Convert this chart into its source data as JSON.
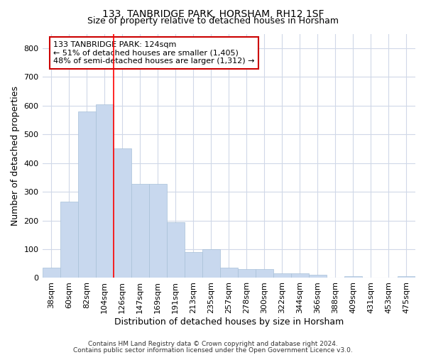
{
  "title1": "133, TANBRIDGE PARK, HORSHAM, RH12 1SF",
  "title2": "Size of property relative to detached houses in Horsham",
  "xlabel": "Distribution of detached houses by size in Horsham",
  "ylabel": "Number of detached properties",
  "categories": [
    "38sqm",
    "60sqm",
    "82sqm",
    "104sqm",
    "126sqm",
    "147sqm",
    "169sqm",
    "191sqm",
    "213sqm",
    "235sqm",
    "257sqm",
    "278sqm",
    "300sqm",
    "322sqm",
    "344sqm",
    "366sqm",
    "388sqm",
    "409sqm",
    "431sqm",
    "453sqm",
    "475sqm"
  ],
  "values": [
    35,
    265,
    580,
    605,
    450,
    328,
    328,
    195,
    90,
    100,
    35,
    30,
    30,
    15,
    15,
    10,
    0,
    5,
    0,
    0,
    5
  ],
  "bar_color": "#c8d8ee",
  "bar_edge_color": "#a8c0d8",
  "red_line_x": 4,
  "annotation_text": "133 TANBRIDGE PARK: 124sqm\n← 51% of detached houses are smaller (1,405)\n48% of semi-detached houses are larger (1,312) →",
  "annotation_box_color": "#ffffff",
  "annotation_box_edge": "#cc0000",
  "ylim": [
    0,
    850
  ],
  "yticks": [
    0,
    100,
    200,
    300,
    400,
    500,
    600,
    700,
    800
  ],
  "footer1": "Contains HM Land Registry data © Crown copyright and database right 2024.",
  "footer2": "Contains public sector information licensed under the Open Government Licence v3.0.",
  "bg_color": "#ffffff",
  "plot_bg_color": "#ffffff",
  "grid_color": "#d0d8e8",
  "title_fontsize": 10,
  "subtitle_fontsize": 9,
  "tick_fontsize": 8,
  "label_fontsize": 9,
  "footer_fontsize": 6.5
}
